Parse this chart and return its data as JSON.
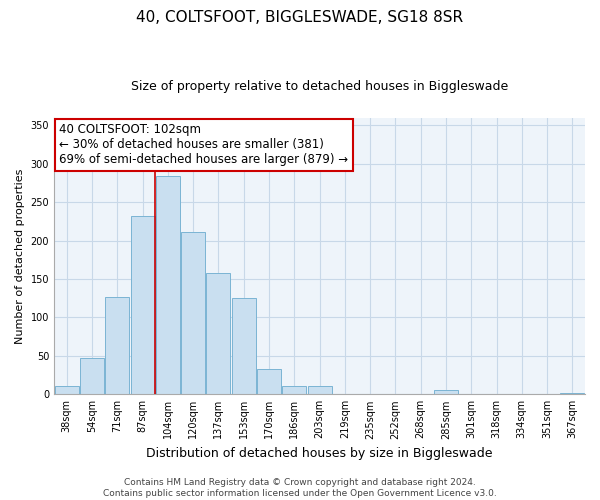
{
  "title": "40, COLTSFOOT, BIGGLESWADE, SG18 8SR",
  "subtitle": "Size of property relative to detached houses in Biggleswade",
  "xlabel": "Distribution of detached houses by size in Biggleswade",
  "ylabel": "Number of detached properties",
  "bar_labels": [
    "38sqm",
    "54sqm",
    "71sqm",
    "87sqm",
    "104sqm",
    "120sqm",
    "137sqm",
    "153sqm",
    "170sqm",
    "186sqm",
    "203sqm",
    "219sqm",
    "235sqm",
    "252sqm",
    "268sqm",
    "285sqm",
    "301sqm",
    "318sqm",
    "334sqm",
    "351sqm",
    "367sqm"
  ],
  "bar_values": [
    11,
    47,
    127,
    232,
    284,
    211,
    158,
    126,
    33,
    11,
    11,
    0,
    0,
    0,
    0,
    6,
    0,
    0,
    0,
    0,
    2
  ],
  "bar_color": "#c9dff0",
  "bar_edge_color": "#7ab4d4",
  "highlight_bar_index": 4,
  "highlight_color": "#cc0000",
  "ylim": [
    0,
    360
  ],
  "yticks": [
    0,
    50,
    100,
    150,
    200,
    250,
    300,
    350
  ],
  "annotation_title": "40 COLTSFOOT: 102sqm",
  "annotation_line1": "← 30% of detached houses are smaller (381)",
  "annotation_line2": "69% of semi-detached houses are larger (879) →",
  "annotation_box_color": "#ffffff",
  "annotation_box_edge": "#cc0000",
  "footer_line1": "Contains HM Land Registry data © Crown copyright and database right 2024.",
  "footer_line2": "Contains public sector information licensed under the Open Government Licence v3.0.",
  "background_color": "#ffffff",
  "grid_color": "#c8d8e8",
  "plot_bg_color": "#eef4fa",
  "title_fontsize": 11,
  "subtitle_fontsize": 9,
  "xlabel_fontsize": 9,
  "ylabel_fontsize": 8,
  "tick_fontsize": 7,
  "annotation_fontsize": 8.5,
  "footer_fontsize": 6.5
}
